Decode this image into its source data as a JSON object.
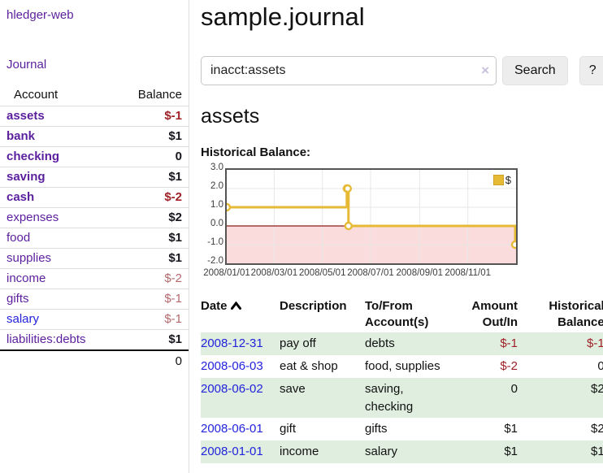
{
  "app": {
    "brand": "hledger-web"
  },
  "sidebar": {
    "nav_journal": "Journal",
    "table": {
      "header_account": "Account",
      "header_balance": "Balance",
      "rows": [
        {
          "account": "assets",
          "indent": 1,
          "bold": true,
          "balance": "$-1",
          "neg": "strong",
          "link": "purple"
        },
        {
          "account": "bank",
          "indent": 2,
          "bold": true,
          "balance": "$1",
          "neg": "none",
          "link": "purple"
        },
        {
          "account": "checking",
          "indent": 3,
          "bold": true,
          "balance": "0",
          "neg": "none",
          "link": "purple"
        },
        {
          "account": "saving",
          "indent": 3,
          "bold": true,
          "balance": "$1",
          "neg": "none",
          "link": "purple"
        },
        {
          "account": "cash",
          "indent": 2,
          "bold": true,
          "balance": "$-2",
          "neg": "strong",
          "link": "purple"
        },
        {
          "account": "expenses",
          "indent": 1,
          "bold": false,
          "balance": "$2",
          "neg": "none",
          "link": "purple"
        },
        {
          "account": "food",
          "indent": 2,
          "bold": false,
          "balance": "$1",
          "neg": "none",
          "link": "purple"
        },
        {
          "account": "supplies",
          "indent": 2,
          "bold": false,
          "balance": "$1",
          "neg": "none",
          "link": "purple"
        },
        {
          "account": "income",
          "indent": 1,
          "bold": false,
          "balance": "$-2",
          "neg": "soft",
          "link": "purple"
        },
        {
          "account": "gifts",
          "indent": 2,
          "bold": false,
          "balance": "$-1",
          "neg": "soft",
          "link": "purple"
        },
        {
          "account": "salary",
          "indent": 2,
          "bold": false,
          "balance": "$-1",
          "neg": "soft",
          "link": "blue"
        },
        {
          "account": "liabilities:debts",
          "indent": 1,
          "bold": false,
          "balance": "$1",
          "neg": "none",
          "link": "purple"
        }
      ],
      "total": "0"
    }
  },
  "header": {
    "title": "sample.journal"
  },
  "search": {
    "value": "inacct:assets",
    "clear_icon": "×",
    "button_label": "Search",
    "help_label": "?"
  },
  "account_page": {
    "heading": "assets",
    "chart_title": "Historical Balance:"
  },
  "chart_data": {
    "type": "line",
    "style": "step-after with point markers",
    "title": "Historical Balance:",
    "legend": "$",
    "legend_position": "top-right inside",
    "series": [
      {
        "name": "$",
        "color": "#e7ba35",
        "points": [
          {
            "x": "2008-01-01",
            "y": 1
          },
          {
            "x": "2008-06-01",
            "y": 2
          },
          {
            "x": "2008-06-02",
            "y": 2
          },
          {
            "x": "2008-06-03",
            "y": 0
          },
          {
            "x": "2008-12-31",
            "y": -1
          }
        ]
      }
    ],
    "ylim": [
      -2,
      3
    ],
    "yticks": [
      {
        "label": "3.0",
        "v": 3
      },
      {
        "label": "2.0",
        "v": 2
      },
      {
        "label": "1.0",
        "v": 1
      },
      {
        "label": "0.0",
        "v": 0
      },
      {
        "label": "-1.0",
        "v": -1
      },
      {
        "label": "-2.0",
        "v": -2
      }
    ],
    "xrange": [
      "2008-01-01",
      "2009-01-01"
    ],
    "xticks": [
      {
        "label": "2008/01/01",
        "x": "2008-01-01"
      },
      {
        "label": "2008/03/01",
        "x": "2008-03-01"
      },
      {
        "label": "2008/05/01",
        "x": "2008-05-01"
      },
      {
        "label": "2008/07/01",
        "x": "2008-07-01"
      },
      {
        "label": "2008/09/01",
        "x": "2008-09-01"
      },
      {
        "label": "2008/11/01",
        "x": "2008-11-01"
      }
    ],
    "grid": true,
    "negative_region_color": "#fbdcdc",
    "zero_line_color": "#8f1d1d",
    "border_color": "#545454"
  },
  "register": {
    "headers": {
      "date": "Date",
      "description": "Description",
      "accounts": "To/From Account(s)",
      "amount": "Amount Out/In",
      "balance": "Historical Balance"
    },
    "sort": {
      "column": "date",
      "direction": "ascending"
    },
    "rows": [
      {
        "date": "2008-12-31",
        "description": "pay off",
        "accounts": "debts",
        "amount": "$-1",
        "amount_neg": true,
        "balance": "$-1",
        "balance_neg": true
      },
      {
        "date": "2008-06-03",
        "description": "eat & shop",
        "accounts": "food, supplies",
        "amount": "$-2",
        "amount_neg": true,
        "balance": "0",
        "balance_neg": false
      },
      {
        "date": "2008-06-02",
        "description": "save",
        "accounts": "saving, checking",
        "amount": "0",
        "amount_neg": false,
        "balance": "$2",
        "balance_neg": false
      },
      {
        "date": "2008-06-01",
        "description": "gift",
        "accounts": "gifts",
        "amount": "$1",
        "amount_neg": false,
        "balance": "$2",
        "balance_neg": false
      },
      {
        "date": "2008-01-01",
        "description": "income",
        "accounts": "salary",
        "amount": "$1",
        "amount_neg": false,
        "balance": "$1",
        "balance_neg": false
      }
    ]
  },
  "theme": {
    "link_purple": "#5b1f9e",
    "link_blue": "#2323dd",
    "negative_strong": "#a02128",
    "negative_soft": "#b4686c",
    "stripe_green": "#dfeede",
    "series_gold": "#e7ba35"
  }
}
